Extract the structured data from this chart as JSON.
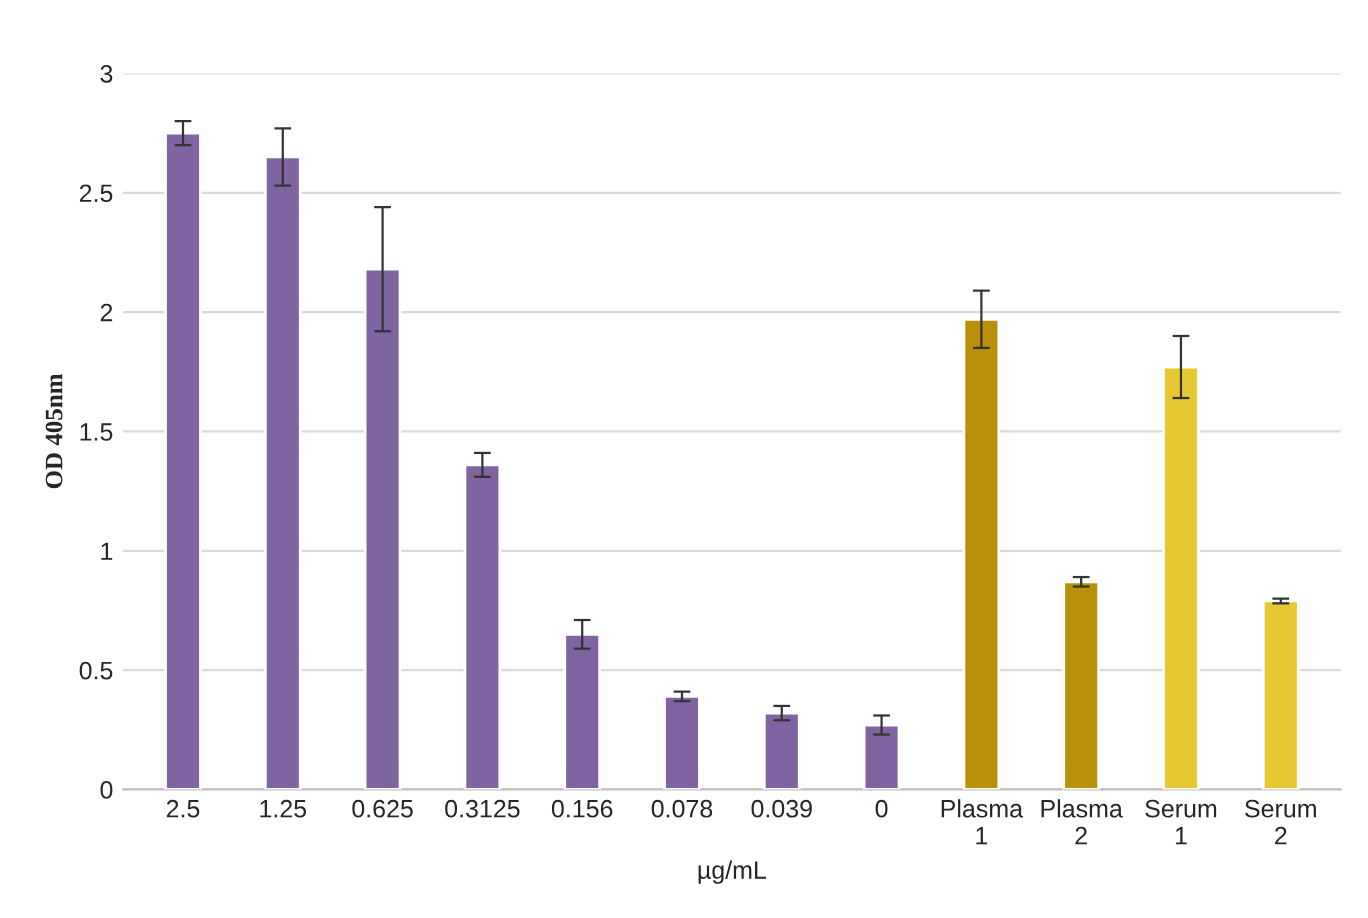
{
  "chart_data": {
    "type": "bar",
    "xlabel": "µg/mL",
    "ylabel": "OD 405nm",
    "categories": [
      "2.5",
      "1.25",
      "0.625",
      "0.3125",
      "0.156",
      "0.078",
      "0.039",
      "0",
      "Plasma 1",
      "Plasma 2",
      "Serum 1",
      "Serum 2"
    ],
    "values": [
      2.75,
      2.65,
      2.18,
      1.36,
      0.65,
      0.39,
      0.32,
      0.27,
      1.97,
      0.87,
      1.77,
      0.79
    ],
    "errors": [
      0.05,
      0.12,
      0.26,
      0.05,
      0.06,
      0.02,
      0.03,
      0.04,
      0.12,
      0.02,
      0.13,
      0.01
    ],
    "colors": [
      "#8064a2",
      "#8064a2",
      "#8064a2",
      "#8064a2",
      "#8064a2",
      "#8064a2",
      "#8064a2",
      "#8064a2",
      "#b8900a",
      "#b8900a",
      "#e6c832",
      "#e6c832"
    ],
    "ylim": [
      0,
      3
    ],
    "yticks": [
      0,
      0.5,
      1,
      1.5,
      2,
      2.5,
      3
    ],
    "grid": "y"
  }
}
